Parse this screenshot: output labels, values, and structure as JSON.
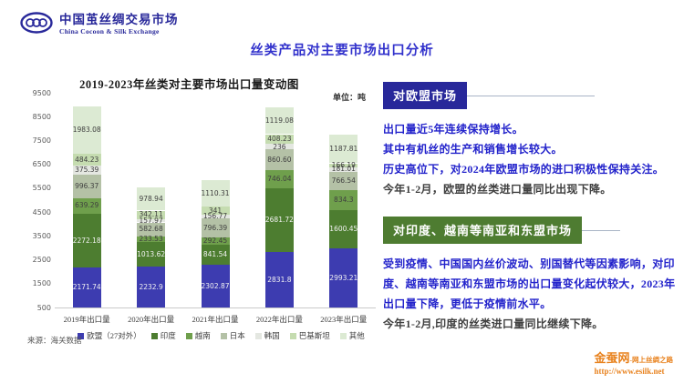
{
  "header": {
    "org_name_zh": "中国茧丝绸交易市场",
    "org_name_en": "China Cocoon & Silk Exchange",
    "logo_icon": "three-interlocked-rings",
    "brand_color": "#28289a"
  },
  "page_title": "丝类产品对主要市场出口分析",
  "chart_data": {
    "type": "bar",
    "stacked": true,
    "title": "2019-2023年丝类对主要市场出口量变动图",
    "unit_label": "单位：吨",
    "source": "来源：海关数据",
    "categories": [
      "2019年出口量",
      "2020年出口量",
      "2021年出口量",
      "2022年出口量",
      "2023年出口量"
    ],
    "series": [
      {
        "name": "欧盟（27对外）",
        "color": "#3d3cb0",
        "label_color": "light",
        "values": [
          2171.74,
          2232.9,
          2302.87,
          2831.8,
          2993.21
        ],
        "labels": [
          "2171.74",
          "2232.9",
          "2302.87",
          "2831.8",
          "2993.21"
        ]
      },
      {
        "name": "印度",
        "color": "#4d7d30",
        "label_color": "light",
        "values": [
          2272.18,
          1013.62,
          841.54,
          2681.72,
          1600.45
        ],
        "labels": [
          "2272.18",
          "1013.62",
          "841.54",
          "2681.72",
          "1600.45"
        ]
      },
      {
        "name": "越南",
        "color": "#6f9f4c",
        "label_color": "dark",
        "values": [
          639.29,
          233.53,
          292.45,
          746.04,
          834.3
        ],
        "labels": [
          "639.29",
          "233.53",
          "292.45",
          "746.04",
          "834.3"
        ]
      },
      {
        "name": "日本",
        "color": "#b4c1a6",
        "label_color": "dark",
        "values": [
          996.37,
          582.68,
          796.39,
          860.6,
          766.54
        ],
        "labels": [
          "996.37",
          "582.68",
          "796.39",
          "860.60",
          "766.54"
        ]
      },
      {
        "name": "韩国",
        "color": "#e4e7e1",
        "label_color": "dark",
        "values": [
          375.39,
          157.97,
          156.77,
          236,
          181.01
        ],
        "labels": [
          "375.39",
          "157.97",
          "156.77",
          "236",
          "181.01"
        ]
      },
      {
        "name": "巴基斯坦",
        "color": "#c5dcb0",
        "label_color": "dark",
        "values": [
          484.23,
          342.11,
          341,
          408.23,
          166.19
        ],
        "labels": [
          "484.23",
          "342.11",
          "341",
          "408.23",
          "166.19"
        ]
      },
      {
        "name": "其他",
        "color": "#dcead3",
        "label_color": "dark",
        "values": [
          1983.08,
          978.94,
          1110.31,
          1119.08,
          1187.81
        ],
        "labels": [
          "1983.08",
          "978.94",
          "1110.31",
          "1119.08",
          "1187.81"
        ]
      }
    ],
    "ylim": [
      500,
      9500
    ],
    "yticks": [
      9500,
      8500,
      7500,
      6500,
      5500,
      4500,
      3500,
      2500,
      1500,
      500
    ],
    "grid": false,
    "legend_position": "bottom"
  },
  "sections": [
    {
      "heading": "对欧盟市场",
      "heading_bg": "#28289a",
      "rule_width": 140,
      "lines": [
        {
          "text": "出口量近5年连续保持增长。",
          "color": "blue"
        },
        {
          "text": "其中有机丝的生产和销售增长较大。",
          "color": "blue"
        },
        {
          "text": "历史高位下，对2024年欧盟市场的进口积极性保持关注。",
          "color": "blue"
        },
        {
          "text": "今年1-2月，欧盟的丝类进口量同比出现下降。",
          "color": "dark"
        }
      ]
    },
    {
      "heading": "对印度、越南等南亚和东盟市场",
      "heading_bg": "#4e7c31",
      "rule_width": 42,
      "lines": [
        {
          "text": "受到疫情、中国国内丝价波动、别国替代等因素影响，对印度、越南等南亚和东盟市场的出口量变化起伏较大，2023年出口量下降，更低于疫情前水平。",
          "color": "blue"
        },
        {
          "text": "今年1-2月,印度的丝类进口量同比继续下降。",
          "color": "dark"
        }
      ]
    }
  ],
  "footer": {
    "site_name": "金蚕网",
    "site_tagline": "-网上丝绸之路",
    "site_url": "http://www.esilk.net",
    "accent_color": "#e8821e"
  },
  "text_colors": {
    "blue": "#2323cb",
    "dark": "#404040"
  }
}
